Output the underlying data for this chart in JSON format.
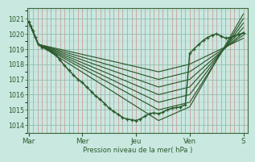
{
  "xlabel": "Pression niveau de la mer( hPa )",
  "bg_color": "#c8e8e0",
  "plot_bg_color": "#c8e8e0",
  "grid_color_v": "#d08080",
  "grid_color_h": "#90c0b0",
  "line_color": "#2d5a2d",
  "ylim": [
    1013.5,
    1021.7
  ],
  "yticks": [
    1014,
    1015,
    1016,
    1017,
    1018,
    1019,
    1020,
    1021
  ],
  "xtick_labels": [
    "Mar",
    "Mer",
    "Jeu",
    "Ven",
    "S"
  ],
  "xtick_positions": [
    0,
    1,
    2,
    3,
    4
  ],
  "fan_origin_x": 0.18,
  "fan_origin_y": 1019.3,
  "fan_lines": [
    {
      "x": [
        0.0,
        0.18,
        2.42,
        3.0,
        4.0
      ],
      "y": [
        1020.8,
        1019.3,
        1014.3,
        1015.2,
        1021.3
      ]
    },
    {
      "x": [
        0.0,
        0.18,
        2.42,
        3.0,
        4.0
      ],
      "y": [
        1020.8,
        1019.3,
        1015.0,
        1015.5,
        1021.0
      ]
    },
    {
      "x": [
        0.0,
        0.18,
        2.42,
        3.0,
        4.0
      ],
      "y": [
        1020.8,
        1019.3,
        1015.5,
        1016.0,
        1020.7
      ]
    },
    {
      "x": [
        0.0,
        0.18,
        2.42,
        3.0,
        4.0
      ],
      "y": [
        1020.8,
        1019.3,
        1016.0,
        1016.5,
        1020.4
      ]
    },
    {
      "x": [
        0.0,
        0.18,
        2.42,
        3.0,
        4.0
      ],
      "y": [
        1020.8,
        1019.3,
        1016.5,
        1017.0,
        1020.1
      ]
    },
    {
      "x": [
        0.0,
        0.18,
        2.42,
        3.0,
        4.0
      ],
      "y": [
        1020.8,
        1019.3,
        1017.0,
        1017.5,
        1019.9
      ]
    },
    {
      "x": [
        0.0,
        0.18,
        2.42,
        3.0,
        4.0
      ],
      "y": [
        1020.8,
        1019.3,
        1017.5,
        1018.0,
        1019.7
      ]
    }
  ],
  "main_x": [
    0.0,
    0.04,
    0.08,
    0.12,
    0.18,
    0.25,
    0.33,
    0.42,
    0.5,
    0.58,
    0.67,
    0.75,
    0.83,
    0.92,
    1.0,
    1.08,
    1.17,
    1.25,
    1.33,
    1.42,
    1.5,
    1.58,
    1.67,
    1.75,
    1.83,
    1.92,
    2.0,
    2.08,
    2.17,
    2.25,
    2.33,
    2.42,
    2.5,
    2.58,
    2.67,
    2.75,
    2.83,
    2.92,
    3.0,
    3.08,
    3.17,
    3.25,
    3.33,
    3.42,
    3.5,
    3.58,
    3.67,
    3.75,
    3.83,
    3.92,
    4.0
  ],
  "main_y": [
    1020.8,
    1020.5,
    1020.2,
    1019.8,
    1019.3,
    1019.1,
    1019.0,
    1018.8,
    1018.6,
    1018.3,
    1017.9,
    1017.6,
    1017.3,
    1017.0,
    1016.8,
    1016.5,
    1016.2,
    1015.9,
    1015.7,
    1015.4,
    1015.1,
    1014.9,
    1014.7,
    1014.5,
    1014.4,
    1014.35,
    1014.3,
    1014.4,
    1014.6,
    1014.75,
    1014.8,
    1014.75,
    1014.85,
    1015.0,
    1015.1,
    1015.15,
    1015.2,
    1015.35,
    1018.7,
    1019.0,
    1019.3,
    1019.55,
    1019.75,
    1019.9,
    1020.0,
    1019.85,
    1019.7,
    1019.75,
    1019.85,
    1019.95,
    1020.05
  ]
}
